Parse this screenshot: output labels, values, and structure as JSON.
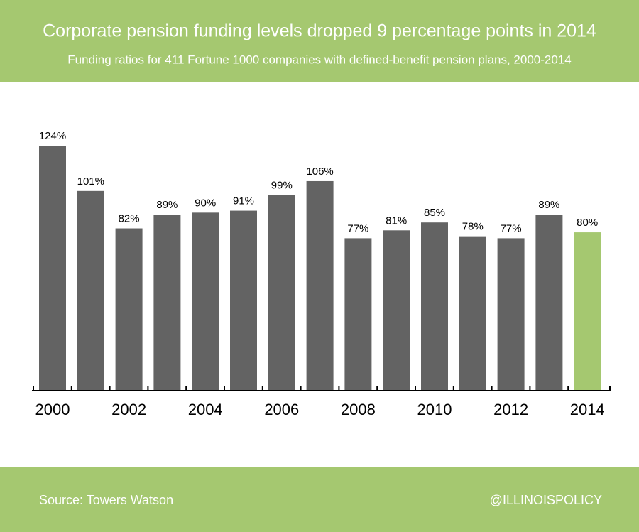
{
  "chart_data": {
    "type": "bar",
    "title": "Corporate pension funding levels dropped 9 percentage points in 2014",
    "subtitle": "Funding ratios for 411 Fortune 1000 companies with defined-benefit pension plans, 2000-2014",
    "categories": [
      "2000",
      null,
      "2002",
      null,
      "2004",
      null,
      "2006",
      null,
      "2008",
      null,
      "2010",
      null,
      "2012",
      null,
      "2014"
    ],
    "values": [
      124,
      101,
      82,
      89,
      90,
      91,
      99,
      106,
      77,
      81,
      85,
      78,
      77,
      89,
      80
    ],
    "value_labels": [
      "124%",
      "101%",
      "82%",
      "89%",
      "90%",
      "91%",
      "99%",
      "106%",
      "77%",
      "81%",
      "85%",
      "78%",
      "77%",
      "89%",
      "80%"
    ],
    "colors": [
      "#636363",
      "#636363",
      "#636363",
      "#636363",
      "#636363",
      "#636363",
      "#636363",
      "#636363",
      "#636363",
      "#636363",
      "#636363",
      "#636363",
      "#636363",
      "#636363",
      "#a5c870"
    ],
    "source": "Source: Towers Watson",
    "credit": "@ILLINOISPOLICY"
  }
}
